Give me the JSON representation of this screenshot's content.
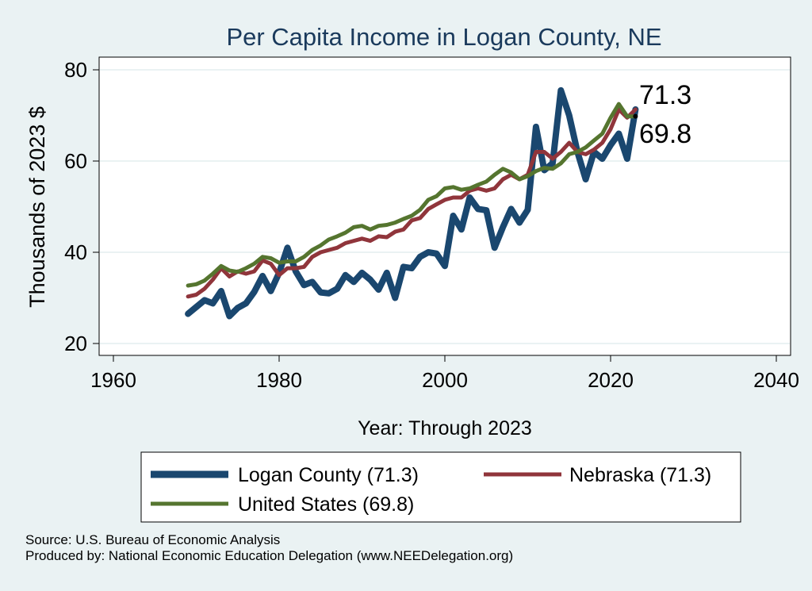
{
  "chart_data": {
    "type": "line",
    "title": "Per Capita Income in Logan County, NE",
    "xlabel": "Year: Through 2023",
    "ylabel": "Thousands of 2023 $",
    "xlim": [
      1960,
      2040
    ],
    "ylim": [
      20,
      80
    ],
    "xticks": [
      1960,
      1980,
      2000,
      2020,
      2040
    ],
    "yticks": [
      20,
      40,
      60,
      80
    ],
    "grid": true,
    "legend_position": "bottom",
    "x": [
      1969,
      1970,
      1971,
      1972,
      1973,
      1974,
      1975,
      1976,
      1977,
      1978,
      1979,
      1980,
      1981,
      1982,
      1983,
      1984,
      1985,
      1986,
      1987,
      1988,
      1989,
      1990,
      1991,
      1992,
      1993,
      1994,
      1995,
      1996,
      1997,
      1998,
      1999,
      2000,
      2001,
      2002,
      2003,
      2004,
      2005,
      2006,
      2007,
      2008,
      2009,
      2010,
      2011,
      2012,
      2013,
      2014,
      2015,
      2016,
      2017,
      2018,
      2019,
      2020,
      2021,
      2022,
      2023
    ],
    "series": [
      {
        "name": "Logan County",
        "legend_label": "Logan County (71.3)",
        "color": "#1a476f",
        "values": [
          26.5,
          28,
          29.5,
          28.8,
          31.5,
          26,
          27.8,
          28.8,
          31.3,
          34.8,
          31.5,
          35.5,
          41,
          35.8,
          32.8,
          33.5,
          31.2,
          31,
          32,
          35,
          33.5,
          35.5,
          34,
          31.8,
          35.5,
          30,
          36.8,
          36.5,
          39,
          40,
          39.7,
          37,
          48,
          45,
          52,
          49.5,
          49.2,
          41,
          45.5,
          49.5,
          46.5,
          49.3,
          67.5,
          58,
          59.5,
          75.5,
          70,
          62,
          56,
          62,
          60.5,
          63.5,
          66,
          60.5,
          71.3
        ]
      },
      {
        "name": "Nebraska",
        "legend_label": "Nebraska (71.3)",
        "color": "#90353b",
        "values": [
          30.3,
          30.7,
          32,
          34,
          36.5,
          34.7,
          35.8,
          35.3,
          35.8,
          38.2,
          37.5,
          35,
          36.5,
          36.5,
          36.8,
          39,
          40,
          40.5,
          41,
          42,
          42.5,
          43,
          42.5,
          43.5,
          43.3,
          44.5,
          45,
          47,
          47.5,
          49.5,
          50.5,
          51.5,
          52,
          52,
          53.5,
          54,
          53.5,
          54,
          56,
          57,
          56,
          57,
          62,
          62,
          60.5,
          62,
          64,
          62,
          61.5,
          62.5,
          64,
          67,
          71.3,
          69.5,
          71.3
        ]
      },
      {
        "name": "United States",
        "legend_label": "United States (69.8)",
        "color": "#55752f",
        "values": [
          32.7,
          33,
          33.8,
          35.3,
          37,
          36,
          35.7,
          36.5,
          37.5,
          39,
          38.7,
          37.7,
          38,
          38,
          39,
          40.5,
          41.5,
          42.8,
          43.5,
          44.3,
          45.5,
          45.8,
          45,
          45.8,
          46,
          46.5,
          47.3,
          48,
          49.3,
          51.5,
          52.3,
          54,
          54.3,
          53.7,
          54,
          54.8,
          55.5,
          57,
          58.3,
          57.5,
          56,
          56.7,
          57.8,
          58.5,
          58.3,
          59.5,
          61.5,
          62,
          63,
          64.5,
          66,
          69.5,
          72.5,
          69.8,
          69.8
        ]
      }
    ],
    "annotations": [
      {
        "text": "71.3",
        "x": 2023,
        "y": 71.3
      },
      {
        "text": "69.8",
        "x": 2023,
        "y": 69.8
      }
    ]
  },
  "footer": {
    "source": "Source: U.S. Bureau of Economic Analysis",
    "producer": "Produced by: National Economic Education Delegation (www.NEEDelegation.org)"
  },
  "colors": {
    "background": "#eaf2f3",
    "plot_area": "#ffffff",
    "grid": "#eaf2f3",
    "title": "#1a3a5c"
  }
}
